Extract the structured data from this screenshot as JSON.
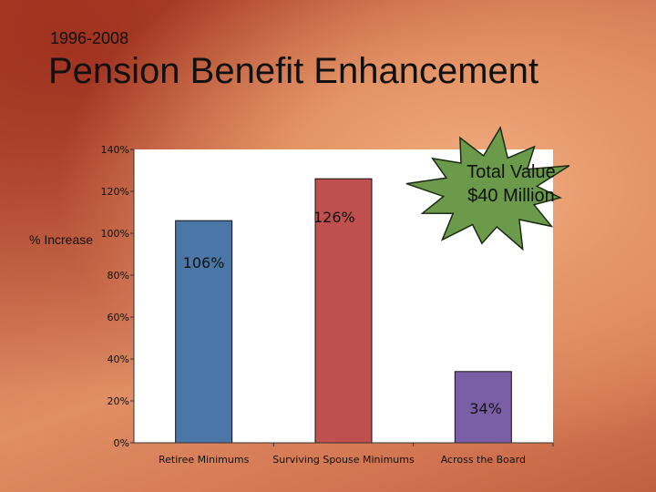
{
  "slide": {
    "subtitle": "1996-2008",
    "title": "Pension Benefit Enhancement",
    "callout_line1": "Total Value",
    "callout_line2": "$40 Million",
    "callout_color": "#6a9a4a"
  },
  "chart_data": {
    "type": "bar",
    "categories": [
      "Retiree Minimums",
      "Surviving Spouse Minimums",
      "Across the Board"
    ],
    "values": [
      106,
      126,
      34
    ],
    "data_labels": [
      "106%",
      "126%",
      "34%"
    ],
    "colors": [
      "#4a77a8",
      "#c0504d",
      "#7b5fa6"
    ],
    "ylabel": "% Increase",
    "ylim": [
      0,
      140
    ],
    "yticks": [
      "0%",
      "20%",
      "40%",
      "60%",
      "80%",
      "100%",
      "120%",
      "140%"
    ],
    "grid": false
  }
}
